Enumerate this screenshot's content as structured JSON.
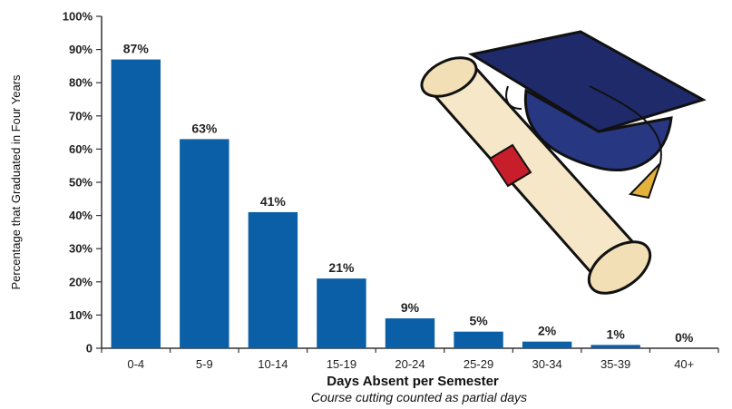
{
  "chart_data": {
    "type": "bar",
    "categories": [
      "0-4",
      "5-9",
      "10-14",
      "15-19",
      "20-24",
      "25-29",
      "30-34",
      "35-39",
      "40+"
    ],
    "values": [
      87,
      63,
      41,
      21,
      9,
      5,
      2,
      1,
      0
    ],
    "value_labels": [
      "87%",
      "63%",
      "41%",
      "21%",
      "9%",
      "5%",
      "2%",
      "1%",
      "0%"
    ],
    "xlabel": "Days Absent per Semester",
    "subtitle": "Course cutting counted as partial days",
    "ylabel": "Percentage that Graduated in Four Years",
    "ylim": [
      0,
      100
    ],
    "yticks": [
      "0",
      "10%",
      "20%",
      "30%",
      "40%",
      "50%",
      "60%",
      "70%",
      "80%",
      "90%",
      "100%"
    ],
    "grid": false,
    "bar_color": "#0a5fa6"
  },
  "illustration": {
    "name": "graduation-cap-and-diploma",
    "cap_color": "#1f2a6b",
    "tassel_color": "#e3b23c",
    "scroll_color": "#f6e7c8",
    "ribbon_color": "#c81e2b"
  }
}
